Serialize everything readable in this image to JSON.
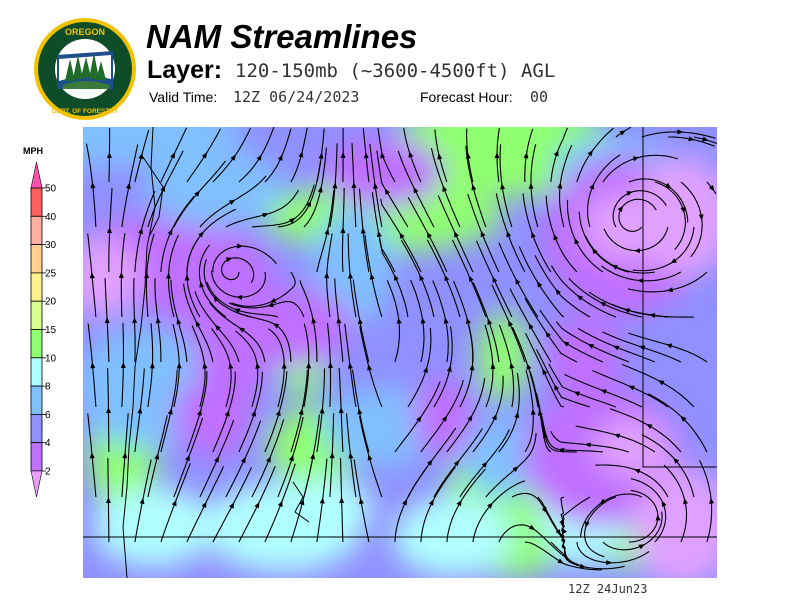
{
  "header": {
    "title": "NAM Streamlines",
    "layer_label": "Layer:",
    "layer_value": "120-150mb (~3600-4500ft) AGL",
    "valid_label": "Valid Time:",
    "valid_value": "12Z 06/24/2023",
    "forecast_label": "Forecast Hour:",
    "forecast_value": "00"
  },
  "logo": {
    "top_text": "OREGON",
    "bottom_text": "DEPARTMENT OF FORESTRY",
    "colors": {
      "ring": "#f2c200",
      "field": "#0f4d2a",
      "water": "#1d4f8a"
    }
  },
  "legend": {
    "units": "MPH",
    "ticks": [
      "50",
      "40",
      "30",
      "25",
      "20",
      "15",
      "10",
      "8",
      "6",
      "4",
      "2"
    ],
    "colors": [
      "#ff6060",
      "#ffb0a0",
      "#ffd090",
      "#fff090",
      "#d8ff90",
      "#90ff70",
      "#b0ffff",
      "#80c0ff",
      "#9090ff",
      "#c070ff"
    ],
    "over_color": "#ff50b0",
    "under_color": "#e8a0ff"
  },
  "map": {
    "stamp": "12Z 24Jun23",
    "line_color": "#000000"
  }
}
